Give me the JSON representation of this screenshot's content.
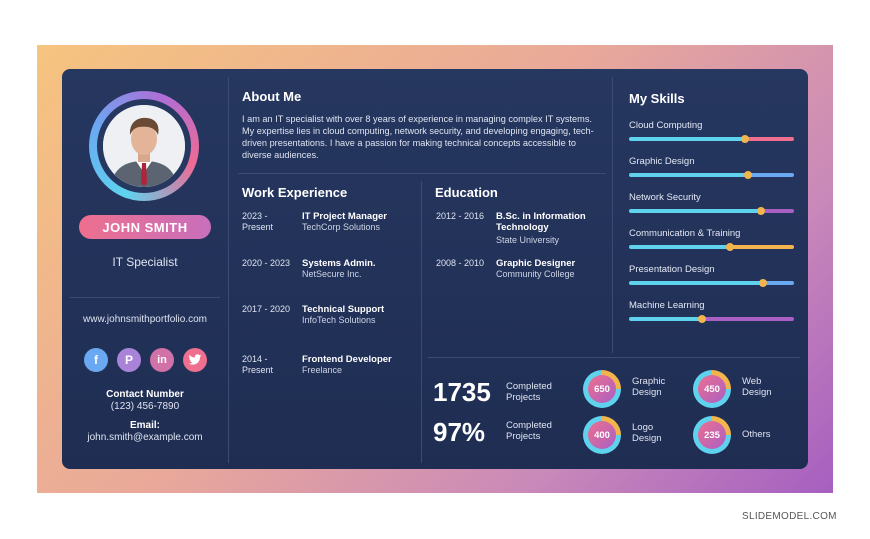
{
  "profile": {
    "name": "JOHN SMITH",
    "role": "IT Specialist",
    "website": "www.johnsmithportfolio.com",
    "contact_label": "Contact Number",
    "phone": "(123) 456-7890",
    "email_label": "Email:",
    "email": "john.smith@example.com",
    "socials": [
      {
        "icon": "facebook-icon",
        "glyph": "f"
      },
      {
        "icon": "pinterest-icon",
        "glyph": "P"
      },
      {
        "icon": "linkedin-icon",
        "glyph": "in"
      },
      {
        "icon": "twitter-icon",
        "glyph": "t"
      }
    ]
  },
  "about": {
    "heading": "About Me",
    "text": "I am an IT specialist with over 8 years of experience in managing complex IT systems. My expertise lies in cloud computing, network security, and developing engaging, tech-driven presentations. I have a passion for making technical concepts accessible to diverse audiences."
  },
  "experience": {
    "heading": "Work Experience",
    "items": [
      {
        "years": "2023 - Present",
        "title": "IT Project Manager",
        "org": "TechCorp Solutions"
      },
      {
        "years": "2020 - 2023",
        "title": "Systems Admin.",
        "org": "NetSecure Inc."
      },
      {
        "years": "2017 - 2020",
        "title": "Technical Support",
        "org": "InfoTech Solutions"
      },
      {
        "years": "2014 - Present",
        "title": "Frontend Developer",
        "org": "Freelance"
      }
    ]
  },
  "education": {
    "heading": "Education",
    "items": [
      {
        "years": "2012 - 2016",
        "title": "B.Sc. in Information Technology",
        "org": "State University"
      },
      {
        "years": "2008 - 2010",
        "title": "Graphic Designer",
        "org": "Community College"
      }
    ]
  },
  "skills": {
    "heading": "My Skills",
    "items": [
      {
        "label": "Cloud Computing",
        "level": 0.7
      },
      {
        "label": "Graphic Design",
        "level": 0.72
      },
      {
        "label": "Network Security",
        "level": 0.8
      },
      {
        "label": "Communication & Training",
        "level": 0.61
      },
      {
        "label": "Presentation Design",
        "level": 0.81
      },
      {
        "label": "Machine Learning",
        "level": 0.44
      }
    ]
  },
  "stats": {
    "projects_count": "1735",
    "projects_label": "Completed Projects",
    "projects_percent": "97%",
    "percent_label": "Completed Projects",
    "categories": [
      {
        "value": "650",
        "label": "Graphic Design"
      },
      {
        "value": "450",
        "label": "Web Design"
      },
      {
        "value": "400",
        "label": "Logo Design"
      },
      {
        "value": "235",
        "label": "Others"
      }
    ]
  },
  "colors": {
    "card": "#263760",
    "pink": "#ee6f8e",
    "purple": "#a95fc4",
    "cyan": "#5fd3ee",
    "gold": "#f2b44c"
  },
  "footer": {
    "credit": "SLIDEMODEL.COM"
  }
}
